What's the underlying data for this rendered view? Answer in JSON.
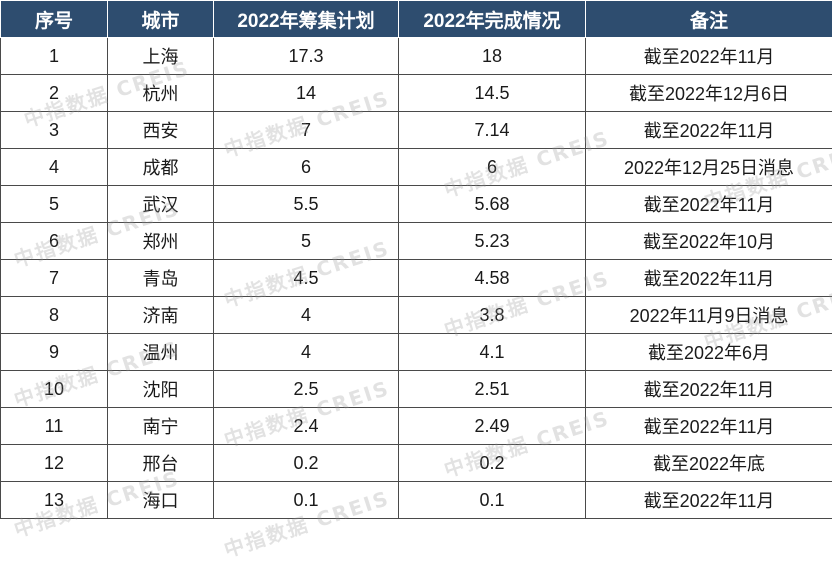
{
  "table": {
    "headers": [
      "序号",
      "城市",
      "2022年筹集计划",
      "2022年完成情况",
      "备注"
    ],
    "rows": [
      [
        "1",
        "上海",
        "17.3",
        "18",
        "截至2022年11月"
      ],
      [
        "2",
        "杭州",
        "14",
        "14.5",
        "截至2022年12月6日"
      ],
      [
        "3",
        "西安",
        "7",
        "7.14",
        "截至2022年11月"
      ],
      [
        "4",
        "成都",
        "6",
        "6",
        "2022年12月25日消息"
      ],
      [
        "5",
        "武汉",
        "5.5",
        "5.68",
        "截至2022年11月"
      ],
      [
        "6",
        "郑州",
        "5",
        "5.23",
        "截至2022年10月"
      ],
      [
        "7",
        "青岛",
        "4.5",
        "4.58",
        "截至2022年11月"
      ],
      [
        "8",
        "济南",
        "4",
        "3.8",
        "2022年11月9日消息"
      ],
      [
        "9",
        "温州",
        "4",
        "4.1",
        "截至2022年6月"
      ],
      [
        "10",
        "沈阳",
        "2.5",
        "2.51",
        "截至2022年11月"
      ],
      [
        "11",
        "南宁",
        "2.4",
        "2.49",
        "截至2022年11月"
      ],
      [
        "12",
        "邢台",
        "0.2",
        "0.2",
        "截至2022年底"
      ],
      [
        "13",
        "海口",
        "0.1",
        "0.1",
        "截至2022年11月"
      ]
    ]
  },
  "watermark": {
    "text": "中指数据 CREIS"
  },
  "colors": {
    "header_bg": "#2e4d6f",
    "header_text": "#ffffff",
    "grid": "#4a4a4a"
  }
}
